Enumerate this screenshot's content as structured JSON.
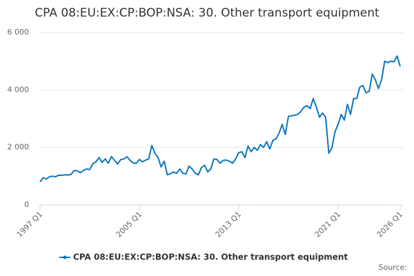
{
  "chart_data": {
    "type": "line",
    "title": "CPA 08:EU:EX:CP:BOP:NSA: 30. Other transport equipment",
    "source": "Source:",
    "categories": [
      "1997 Q1",
      null,
      null,
      null,
      null,
      null,
      null,
      null,
      null,
      null,
      null,
      null,
      null,
      null,
      null,
      null,
      null,
      null,
      null,
      null,
      null,
      null,
      null,
      null,
      null,
      null,
      null,
      null,
      null,
      null,
      null,
      null,
      "2005 Q1",
      null,
      null,
      null,
      null,
      null,
      null,
      null,
      null,
      null,
      null,
      null,
      null,
      null,
      null,
      null,
      null,
      null,
      null,
      null,
      null,
      null,
      null,
      null,
      null,
      null,
      null,
      null,
      null,
      null,
      null,
      null,
      "2013 Q1",
      null,
      null,
      null,
      null,
      null,
      null,
      null,
      null,
      null,
      null,
      null,
      null,
      null,
      null,
      null,
      null,
      null,
      null,
      null,
      null,
      null,
      null,
      null,
      null,
      null,
      null,
      null,
      null,
      null,
      null,
      null,
      "2021 Q1",
      null,
      null,
      null,
      null,
      null,
      null,
      null,
      null,
      null,
      null,
      null,
      null,
      null,
      null,
      null,
      null,
      null,
      null,
      null,
      "2026 Q1"
    ],
    "series": [
      {
        "name": "CPA 08:EU:EX:CP:BOP:NSA: 30. Other transport equipment",
        "color": "#0d76bd",
        "values": [
          800,
          950,
          900,
          980,
          1000,
          980,
          1040,
          1030,
          1050,
          1040,
          1060,
          1200,
          1180,
          1120,
          1200,
          1250,
          1230,
          1430,
          1500,
          1650,
          1480,
          1600,
          1450,
          1680,
          1550,
          1420,
          1580,
          1600,
          1680,
          1550,
          1460,
          1450,
          1580,
          1500,
          1560,
          1600,
          2070,
          1800,
          1650,
          1320,
          1520,
          1050,
          1080,
          1150,
          1100,
          1250,
          1100,
          1080,
          1350,
          1250,
          1100,
          1050,
          1300,
          1380,
          1150,
          1250,
          1600,
          1580,
          1450,
          1550,
          1560,
          1520,
          1450,
          1600,
          1820,
          1850,
          1650,
          2050,
          1850,
          2000,
          1900,
          2100,
          2000,
          2200,
          1950,
          2250,
          2300,
          2500,
          2800,
          2450,
          3080,
          3100,
          3120,
          3150,
          3250,
          3400,
          3450,
          3350,
          3700,
          3400,
          3050,
          3200,
          3050,
          1800,
          1980,
          2550,
          2800,
          3150,
          2950,
          3500,
          3150,
          3700,
          3700,
          4100,
          4150,
          3900,
          3950,
          4550,
          4350,
          4050,
          4350,
          5000,
          4950,
          5000,
          4980,
          5180,
          4820
        ]
      }
    ],
    "ylim": [
      0,
      6000
    ],
    "yticks": [
      {
        "value": 0,
        "label": "0"
      },
      {
        "value": 2000,
        "label": "2 000"
      },
      {
        "value": 4000,
        "label": "4 000"
      },
      {
        "value": 6000,
        "label": "6 000"
      }
    ],
    "grid": true
  }
}
